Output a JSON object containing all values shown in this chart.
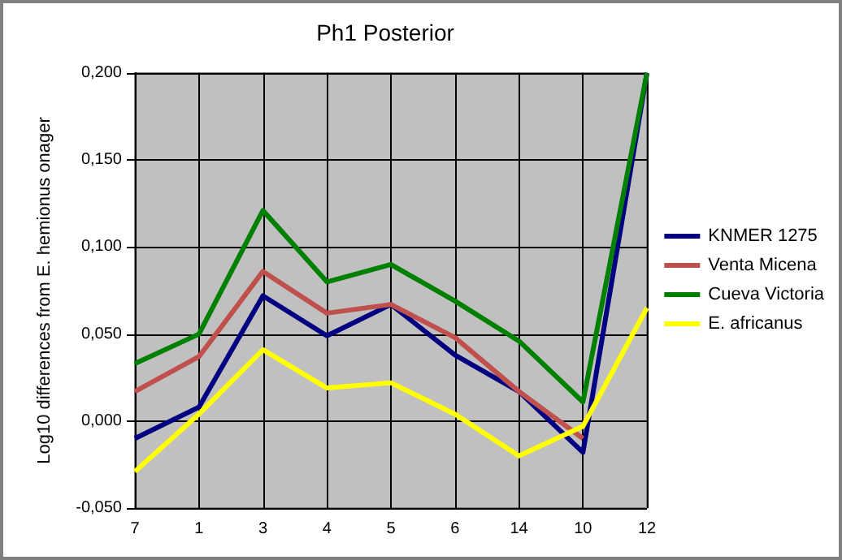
{
  "chart_data": {
    "type": "line",
    "title": "Ph1 Posterior",
    "ylabel": "Log10 differences from E. hemionus onager",
    "categories": [
      "7",
      "1",
      "3",
      "4",
      "5",
      "6",
      "14",
      "10",
      "12"
    ],
    "series": [
      {
        "name": "KNMER 1275",
        "color": "#000080",
        "values": [
          -0.01,
          0.008,
          0.072,
          0.049,
          0.067,
          0.038,
          0.017,
          -0.018,
          0.2
        ]
      },
      {
        "name": "Venta Micena",
        "color": "#c0504d",
        "values": [
          0.017,
          0.037,
          0.086,
          0.062,
          0.067,
          0.048,
          0.017,
          -0.01,
          null
        ]
      },
      {
        "name": "Cueva Victoria",
        "color": "#008000",
        "values": [
          0.033,
          0.05,
          0.121,
          0.08,
          0.09,
          0.069,
          0.046,
          0.011,
          0.2
        ]
      },
      {
        "name": "E. africanus",
        "color": "#ffff00",
        "values": [
          -0.029,
          0.004,
          0.041,
          0.019,
          0.022,
          0.004,
          -0.02,
          -0.003,
          0.065
        ]
      }
    ],
    "ylim": [
      -0.05,
      0.2
    ],
    "yticks": [
      {
        "value": -0.05,
        "label": "-0,050"
      },
      {
        "value": 0,
        "label": "0,000"
      },
      {
        "value": 0.05,
        "label": "0,050"
      },
      {
        "value": 0.1,
        "label": "0,100"
      },
      {
        "value": 0.15,
        "label": "0,150"
      },
      {
        "value": 0.2,
        "label": "0,200"
      }
    ],
    "grid": true,
    "legend": "right",
    "marker": "none",
    "line_style": "solid"
  }
}
